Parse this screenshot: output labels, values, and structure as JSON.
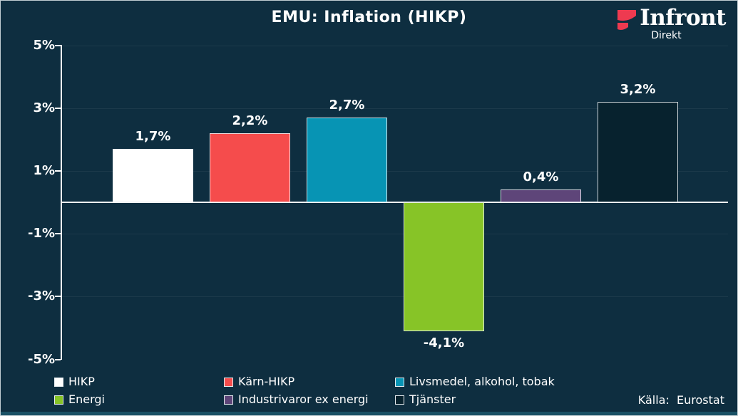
{
  "title": "EMU: Inflation (HIKP)",
  "logo": {
    "wordmark": "Infront",
    "subtitle": "Direkt",
    "icon": "infront-flag-icon",
    "icon_color": "#ee3a50"
  },
  "source": "Källa:  Eurostat",
  "colors": {
    "background": "#0e2e40",
    "axis": "#ffffff",
    "gridline": "rgba(255,255,255,0.06)",
    "bottom_accent": "#1a5165",
    "logo_red": "#ee3a50"
  },
  "chart_data": {
    "type": "bar",
    "title": "EMU: Inflation (HIKP)",
    "categories": [
      "HIKP",
      "Kärn-HIKP",
      "Livsmedel, alkohol, tobak",
      "Energi",
      "Industrivaror ex energi",
      "Tjänster"
    ],
    "values": [
      1.7,
      2.2,
      2.7,
      -4.1,
      0.4,
      3.2
    ],
    "value_labels": [
      "1,7%",
      "2,2%",
      "2,7%",
      "-4,1%",
      "0,4%",
      "3,2%"
    ],
    "bar_colors": [
      "#ffffff",
      "#f54c4c",
      "#0794b4",
      "#87c427",
      "#5e4579",
      "#07222e"
    ],
    "ylim": [
      -5,
      5
    ],
    "ytick_values": [
      5,
      3,
      1,
      -1,
      -3,
      -5
    ],
    "ytick_labels": [
      "5%",
      "3%",
      "1%",
      "-1%",
      "-3%",
      "-5%"
    ],
    "grid": true,
    "legend_position": "bottom",
    "legend_rows": [
      [
        "HIKP",
        "Kärn-HIKP",
        "Livsmedel, alkohol, tobak"
      ],
      [
        "Energi",
        "Industrivaror ex energi",
        "Tjänster"
      ]
    ]
  }
}
